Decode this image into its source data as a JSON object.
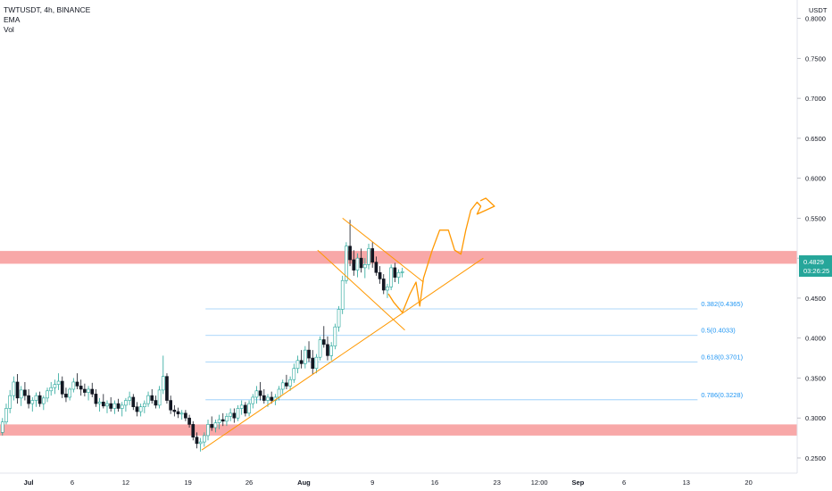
{
  "header": {
    "symbol_line": "TWTUSDT, 4h, BINANCE",
    "indicator_1": "EMA",
    "indicator_2": "Vol"
  },
  "price_axis": {
    "unit": "USDT",
    "current_price": "0.4829",
    "countdown": "03:26:25",
    "current_value": 0.4829
  },
  "chart_data": {
    "type": "candlestick",
    "x_range": [
      0,
      64
    ],
    "y_range": [
      0.231,
      0.823
    ],
    "y_ticks": [
      {
        "v": 0.8,
        "label": "0.8000"
      },
      {
        "v": 0.75,
        "label": "0.7500"
      },
      {
        "v": 0.7,
        "label": "0.7000"
      },
      {
        "v": 0.65,
        "label": "0.6500"
      },
      {
        "v": 0.6,
        "label": "0.6000"
      },
      {
        "v": 0.55,
        "label": "0.5500"
      },
      {
        "v": 0.5,
        "label": "0.5000"
      },
      {
        "v": 0.45,
        "label": "0.4500"
      },
      {
        "v": 0.4,
        "label": "0.4000"
      },
      {
        "v": 0.35,
        "label": "0.3500"
      },
      {
        "v": 0.3,
        "label": "0.3000"
      },
      {
        "v": 0.25,
        "label": "0.2500"
      }
    ],
    "x_ticks": [
      {
        "x": 2.3,
        "label": "Jul",
        "bold": true
      },
      {
        "x": 5.8,
        "label": "6",
        "bold": false
      },
      {
        "x": 10.1,
        "label": "12",
        "bold": false
      },
      {
        "x": 15.1,
        "label": "19",
        "bold": false
      },
      {
        "x": 20.0,
        "label": "26",
        "bold": false
      },
      {
        "x": 24.4,
        "label": "Aug",
        "bold": true
      },
      {
        "x": 29.9,
        "label": "9",
        "bold": false
      },
      {
        "x": 34.9,
        "label": "16",
        "bold": false
      },
      {
        "x": 39.9,
        "label": "23",
        "bold": false
      },
      {
        "x": 43.3,
        "label": "12:00",
        "bold": false
      },
      {
        "x": 46.4,
        "label": "Sep",
        "bold": true
      },
      {
        "x": 50.1,
        "label": "6",
        "bold": false
      },
      {
        "x": 55.1,
        "label": "13",
        "bold": false
      },
      {
        "x": 60.1,
        "label": "20",
        "bold": false
      }
    ],
    "zones": [
      {
        "from": 0.493,
        "to": 0.509,
        "color": "#f8a8a8"
      },
      {
        "from": 0.278,
        "to": 0.292,
        "color": "#f8a8a8"
      }
    ],
    "fib_levels": [
      {
        "label": "0.382(0.4365)",
        "value": 0.4365,
        "x_start": 16.5,
        "x_end": 56
      },
      {
        "label": "0.5(0.4033)",
        "value": 0.4033,
        "x_start": 16.5,
        "x_end": 56
      },
      {
        "label": "0.618(0.3701)",
        "value": 0.3701,
        "x_start": 16.5,
        "x_end": 56
      },
      {
        "label": "0.786(0.3228)",
        "value": 0.3228,
        "x_start": 16.5,
        "x_end": 56
      }
    ],
    "trendlines": [
      {
        "x1": 16.2,
        "y1": 0.26,
        "x2": 38.8,
        "y2": 0.5
      },
      {
        "x1": 27.5,
        "y1": 0.55,
        "x2": 34.0,
        "y2": 0.47
      },
      {
        "x1": 25.5,
        "y1": 0.51,
        "x2": 32.5,
        "y2": 0.41
      }
    ],
    "projection": [
      [
        31.2,
        0.455
      ],
      [
        31.6,
        0.445
      ],
      [
        32.3,
        0.432
      ],
      [
        32.9,
        0.455
      ],
      [
        33.4,
        0.47
      ],
      [
        33.7,
        0.44
      ],
      [
        34.0,
        0.475
      ],
      [
        34.3,
        0.49
      ],
      [
        34.7,
        0.51
      ],
      [
        35.3,
        0.535
      ],
      [
        36.0,
        0.535
      ],
      [
        36.5,
        0.51
      ],
      [
        37.0,
        0.505
      ],
      [
        37.4,
        0.535
      ],
      [
        37.8,
        0.56
      ],
      [
        38.3,
        0.57
      ],
      [
        38.6,
        0.565
      ],
      [
        38.3,
        0.555
      ],
      [
        39.0,
        0.56
      ],
      [
        39.7,
        0.565
      ],
      [
        39.0,
        0.575
      ],
      [
        38.6,
        0.572
      ]
    ],
    "ohlc": [
      [
        0.2,
        0.282,
        0.3,
        0.278,
        0.295
      ],
      [
        0.5,
        0.295,
        0.318,
        0.292,
        0.312
      ],
      [
        0.8,
        0.312,
        0.335,
        0.306,
        0.328
      ],
      [
        1.1,
        0.328,
        0.352,
        0.322,
        0.345
      ],
      [
        1.4,
        0.345,
        0.355,
        0.318,
        0.325
      ],
      [
        1.7,
        0.325,
        0.34,
        0.315,
        0.335
      ],
      [
        2.0,
        0.335,
        0.345,
        0.322,
        0.328
      ],
      [
        2.3,
        0.328,
        0.336,
        0.312,
        0.318
      ],
      [
        2.6,
        0.318,
        0.326,
        0.308,
        0.322
      ],
      [
        2.9,
        0.322,
        0.332,
        0.314,
        0.328
      ],
      [
        3.2,
        0.328,
        0.333,
        0.314,
        0.318
      ],
      [
        3.5,
        0.318,
        0.328,
        0.31,
        0.325
      ],
      [
        3.8,
        0.325,
        0.338,
        0.32,
        0.334
      ],
      [
        4.1,
        0.334,
        0.345,
        0.328,
        0.338
      ],
      [
        4.4,
        0.338,
        0.348,
        0.33,
        0.342
      ],
      [
        4.7,
        0.342,
        0.356,
        0.335,
        0.346
      ],
      [
        5.0,
        0.346,
        0.352,
        0.325,
        0.33
      ],
      [
        5.3,
        0.33,
        0.338,
        0.32,
        0.326
      ],
      [
        5.6,
        0.326,
        0.338,
        0.322,
        0.336
      ],
      [
        5.9,
        0.336,
        0.35,
        0.332,
        0.345
      ],
      [
        6.2,
        0.345,
        0.356,
        0.336,
        0.34
      ],
      [
        6.5,
        0.34,
        0.348,
        0.328,
        0.336
      ],
      [
        6.8,
        0.336,
        0.343,
        0.327,
        0.332
      ],
      [
        7.1,
        0.332,
        0.34,
        0.322,
        0.336
      ],
      [
        7.4,
        0.336,
        0.344,
        0.326,
        0.33
      ],
      [
        7.7,
        0.33,
        0.336,
        0.314,
        0.318
      ],
      [
        8.0,
        0.318,
        0.325,
        0.308,
        0.32
      ],
      [
        8.3,
        0.32,
        0.33,
        0.312,
        0.315
      ],
      [
        8.6,
        0.315,
        0.322,
        0.306,
        0.318
      ],
      [
        8.9,
        0.318,
        0.326,
        0.308,
        0.312
      ],
      [
        9.2,
        0.312,
        0.322,
        0.305,
        0.318
      ],
      [
        9.5,
        0.318,
        0.324,
        0.308,
        0.312
      ],
      [
        9.8,
        0.312,
        0.32,
        0.302,
        0.316
      ],
      [
        10.1,
        0.316,
        0.325,
        0.308,
        0.322
      ],
      [
        10.4,
        0.322,
        0.333,
        0.316,
        0.326
      ],
      [
        10.7,
        0.326,
        0.33,
        0.31,
        0.314
      ],
      [
        11.0,
        0.314,
        0.32,
        0.302,
        0.308
      ],
      [
        11.3,
        0.308,
        0.318,
        0.302,
        0.314
      ],
      [
        11.6,
        0.314,
        0.322,
        0.306,
        0.318
      ],
      [
        11.9,
        0.318,
        0.333,
        0.314,
        0.328
      ],
      [
        12.2,
        0.328,
        0.336,
        0.318,
        0.322
      ],
      [
        12.5,
        0.322,
        0.328,
        0.312,
        0.316
      ],
      [
        12.8,
        0.316,
        0.34,
        0.312,
        0.335
      ],
      [
        13.1,
        0.335,
        0.378,
        0.33,
        0.352
      ],
      [
        13.4,
        0.352,
        0.356,
        0.318,
        0.322
      ],
      [
        13.7,
        0.322,
        0.328,
        0.305,
        0.31
      ],
      [
        14.0,
        0.31,
        0.316,
        0.302,
        0.308
      ],
      [
        14.3,
        0.308,
        0.313,
        0.3,
        0.305
      ],
      [
        14.6,
        0.305,
        0.31,
        0.298,
        0.306
      ],
      [
        14.9,
        0.306,
        0.31,
        0.296,
        0.3
      ],
      [
        15.2,
        0.3,
        0.304,
        0.288,
        0.292
      ],
      [
        15.5,
        0.292,
        0.296,
        0.272,
        0.276
      ],
      [
        15.8,
        0.276,
        0.282,
        0.262,
        0.268
      ],
      [
        16.1,
        0.268,
        0.275,
        0.258,
        0.27
      ],
      [
        16.4,
        0.27,
        0.282,
        0.264,
        0.278
      ],
      [
        16.7,
        0.278,
        0.298,
        0.272,
        0.292
      ],
      [
        17.0,
        0.292,
        0.302,
        0.284,
        0.288
      ],
      [
        17.3,
        0.288,
        0.298,
        0.282,
        0.294
      ],
      [
        17.6,
        0.294,
        0.304,
        0.286,
        0.298
      ],
      [
        17.9,
        0.298,
        0.306,
        0.29,
        0.296
      ],
      [
        18.2,
        0.296,
        0.306,
        0.29,
        0.302
      ],
      [
        18.5,
        0.302,
        0.312,
        0.296,
        0.306
      ],
      [
        18.8,
        0.306,
        0.312,
        0.294,
        0.3
      ],
      [
        19.1,
        0.3,
        0.316,
        0.296,
        0.312
      ],
      [
        19.4,
        0.312,
        0.322,
        0.304,
        0.316
      ],
      [
        19.7,
        0.316,
        0.32,
        0.302,
        0.306
      ],
      [
        20.0,
        0.306,
        0.322,
        0.302,
        0.318
      ],
      [
        20.3,
        0.318,
        0.33,
        0.312,
        0.326
      ],
      [
        20.6,
        0.326,
        0.34,
        0.318,
        0.334
      ],
      [
        20.9,
        0.334,
        0.345,
        0.322,
        0.328
      ],
      [
        21.2,
        0.328,
        0.336,
        0.318,
        0.322
      ],
      [
        21.5,
        0.322,
        0.33,
        0.314,
        0.326
      ],
      [
        21.8,
        0.326,
        0.333,
        0.318,
        0.322
      ],
      [
        22.1,
        0.322,
        0.33,
        0.316,
        0.326
      ],
      [
        22.4,
        0.326,
        0.34,
        0.322,
        0.336
      ],
      [
        22.7,
        0.336,
        0.348,
        0.33,
        0.344
      ],
      [
        23.0,
        0.344,
        0.354,
        0.336,
        0.34
      ],
      [
        23.3,
        0.34,
        0.352,
        0.334,
        0.348
      ],
      [
        23.6,
        0.348,
        0.368,
        0.344,
        0.362
      ],
      [
        23.9,
        0.362,
        0.378,
        0.356,
        0.372
      ],
      [
        24.2,
        0.372,
        0.385,
        0.362,
        0.368
      ],
      [
        24.5,
        0.368,
        0.39,
        0.362,
        0.385
      ],
      [
        24.8,
        0.385,
        0.396,
        0.37,
        0.375
      ],
      [
        25.1,
        0.375,
        0.385,
        0.355,
        0.362
      ],
      [
        25.4,
        0.362,
        0.38,
        0.356,
        0.376
      ],
      [
        25.7,
        0.376,
        0.402,
        0.372,
        0.398
      ],
      [
        26.0,
        0.398,
        0.415,
        0.388,
        0.392
      ],
      [
        26.3,
        0.392,
        0.402,
        0.372,
        0.378
      ],
      [
        26.6,
        0.378,
        0.395,
        0.372,
        0.39
      ],
      [
        26.9,
        0.39,
        0.418,
        0.386,
        0.414
      ],
      [
        27.2,
        0.414,
        0.44,
        0.408,
        0.436
      ],
      [
        27.5,
        0.436,
        0.478,
        0.43,
        0.472
      ],
      [
        27.8,
        0.472,
        0.52,
        0.468,
        0.515
      ],
      [
        28.1,
        0.515,
        0.548,
        0.49,
        0.498
      ],
      [
        28.4,
        0.498,
        0.51,
        0.478,
        0.485
      ],
      [
        28.7,
        0.485,
        0.506,
        0.476,
        0.5
      ],
      [
        29.0,
        0.5,
        0.512,
        0.482,
        0.488
      ],
      [
        29.3,
        0.488,
        0.5,
        0.475,
        0.492
      ],
      [
        29.6,
        0.492,
        0.518,
        0.486,
        0.512
      ],
      [
        29.9,
        0.512,
        0.52,
        0.488,
        0.495
      ],
      [
        30.2,
        0.495,
        0.502,
        0.478,
        0.482
      ],
      [
        30.5,
        0.482,
        0.49,
        0.468,
        0.474
      ],
      [
        30.8,
        0.474,
        0.48,
        0.455,
        0.46
      ],
      [
        31.1,
        0.46,
        0.468,
        0.45,
        0.464
      ],
      [
        31.4,
        0.464,
        0.492,
        0.46,
        0.488
      ],
      [
        31.7,
        0.488,
        0.494,
        0.47,
        0.476
      ],
      [
        32.0,
        0.476,
        0.486,
        0.468,
        0.482
      ],
      [
        32.3,
        0.482,
        0.488,
        0.476,
        0.483
      ]
    ]
  }
}
